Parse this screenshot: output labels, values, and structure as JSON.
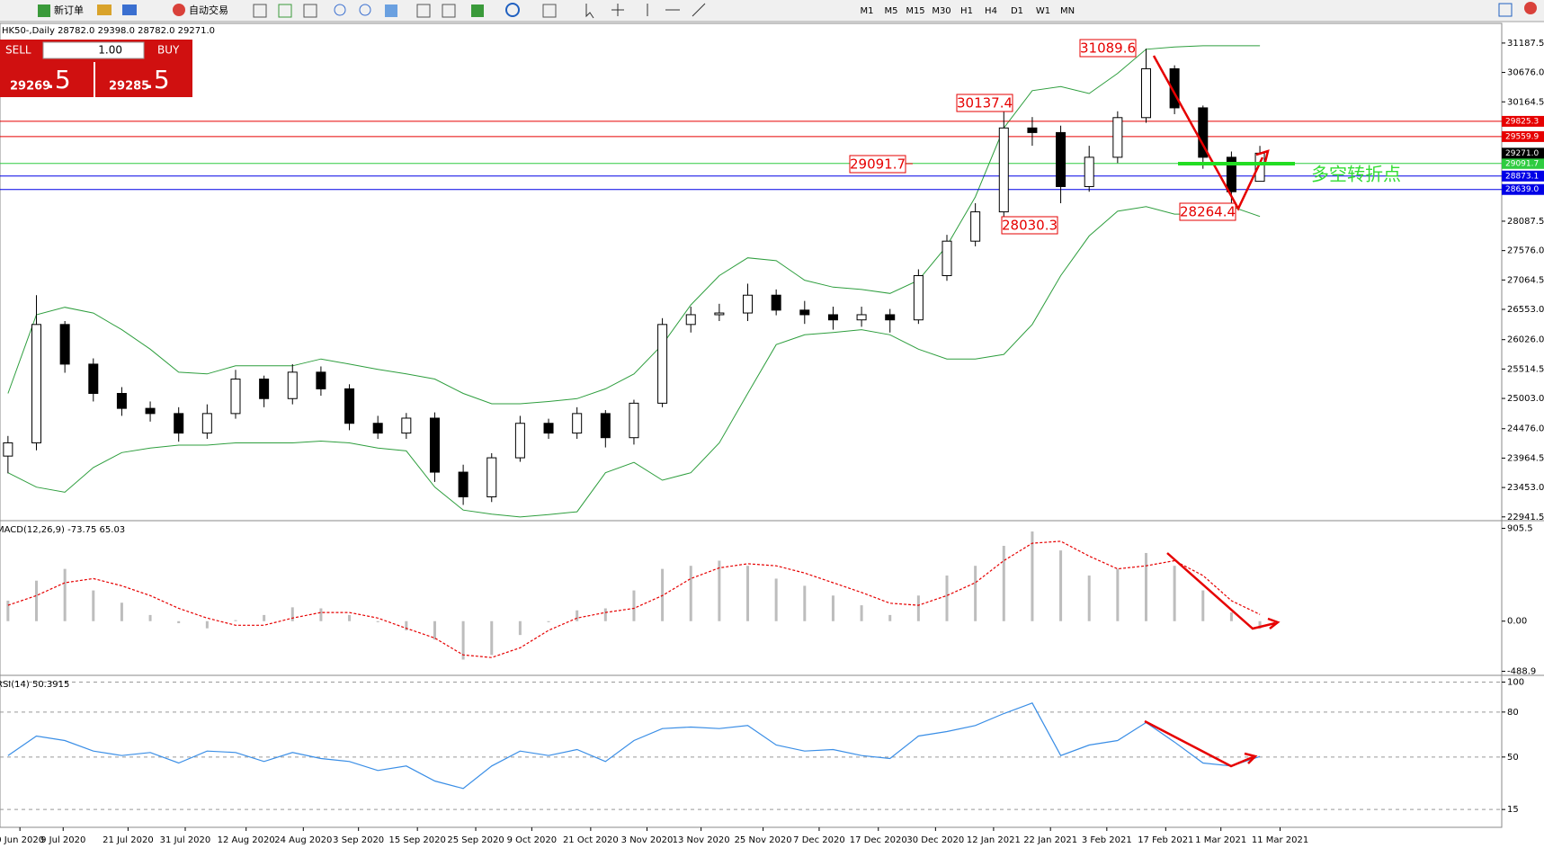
{
  "toolbar": {
    "new_order": "新订单",
    "auto_trading": "自动交易",
    "timeframes": [
      "M1",
      "M5",
      "M15",
      "M30",
      "H1",
      "H4",
      "D1",
      "W1",
      "MN"
    ]
  },
  "trade_panel": {
    "sell": "SELL",
    "buy": "BUY",
    "lots": "1.00",
    "bid_main": "29269",
    "bid_tail": ".5",
    "ask_main": "29285",
    "ask_tail": ".5"
  },
  "chart_data": [
    {
      "type": "candlestick",
      "title": "HK50-,Daily 28782.0 29398.0 28782.0 29271.0",
      "xlim": [
        -0.28,
        52.5
      ],
      "ylim": [
        22907,
        31530
      ],
      "yticks": [
        31187.5,
        {
          "value": 30676,
          "label": "30676.0"
        },
        30164.5,
        28087.5,
        {
          "value": 27576,
          "label": "27576.0"
        },
        27064.5,
        {
          "value": 26553,
          "label": "26553.0"
        },
        {
          "value": 26026,
          "label": "26026.0"
        },
        25514.5,
        {
          "value": 25003,
          "label": "25003.0"
        },
        {
          "value": 24476,
          "label": "24476.0"
        },
        23964.5,
        {
          "value": 23453,
          "label": "23453.0"
        },
        22941.5
      ],
      "open": [
        24000,
        24230,
        26290,
        25600,
        25090,
        24830,
        24740,
        24400,
        24740,
        25340,
        25000,
        25460,
        25170,
        24570,
        24400,
        24660,
        23720,
        23290,
        23970,
        24570,
        24400,
        24740,
        24320,
        24920,
        26290,
        26460,
        26490,
        26800,
        26540,
        26460,
        26370,
        26460,
        26370,
        27140,
        27740,
        28250,
        29710,
        29630,
        28690,
        29200,
        29890,
        30740,
        30060,
        29200,
        28782
      ],
      "high": [
        24350,
        26800,
        26350,
        25700,
        25200,
        24950,
        24850,
        24900,
        25500,
        25400,
        25600,
        25560,
        25250,
        24700,
        24750,
        24760,
        23850,
        24050,
        24700,
        24650,
        24850,
        24800,
        24980,
        26400,
        26600,
        26650,
        27000,
        26900,
        26700,
        26600,
        26600,
        26560,
        27250,
        27850,
        28400,
        30137.4,
        29900,
        29750,
        29400,
        30000,
        31089.6,
        30800,
        30100,
        29300,
        29398
      ],
      "low": [
        23700,
        24100,
        25450,
        24950,
        24700,
        24600,
        24250,
        24300,
        24650,
        24850,
        24900,
        25050,
        24450,
        24300,
        24300,
        23550,
        23150,
        23200,
        23900,
        24300,
        24300,
        24150,
        24200,
        24850,
        26150,
        26350,
        26350,
        26450,
        26300,
        26200,
        26250,
        26150,
        26300,
        27050,
        27650,
        28030.3,
        29400,
        28400,
        28600,
        29100,
        29800,
        29950,
        29000,
        28264.4,
        28782
      ],
      "close": [
        24230,
        26290,
        25600,
        25090,
        24830,
        24740,
        24400,
        24740,
        25340,
        25000,
        25460,
        25170,
        24570,
        24400,
        24660,
        23720,
        23290,
        23970,
        24570,
        24400,
        24740,
        24320,
        24920,
        26290,
        26460,
        26490,
        26800,
        26540,
        26460,
        26370,
        26460,
        26370,
        27140,
        27740,
        28250,
        29710,
        29630,
        28690,
        29200,
        29890,
        30740,
        30060,
        29200,
        28600,
        29271
      ],
      "bollinger": {
        "color": "#2e9e3e",
        "upper": [
          25090,
          26460,
          26590,
          26490,
          26200,
          25860,
          25460,
          25430,
          25570,
          25570,
          25570,
          25690,
          25600,
          25510,
          25430,
          25340,
          25090,
          24910,
          24910,
          24950,
          25000,
          25170,
          25430,
          25940,
          26630,
          27140,
          27450,
          27400,
          27060,
          26940,
          26900,
          26830,
          27060,
          27660,
          28510,
          29710,
          30360,
          30430,
          30310,
          30660,
          31080,
          31120,
          31140,
          31140,
          31140
        ],
        "lower": [
          23710,
          23460,
          23370,
          23800,
          24060,
          24140,
          24190,
          24190,
          24230,
          24230,
          24230,
          24260,
          24230,
          24140,
          24090,
          23460,
          23060,
          22990,
          22940,
          22980,
          23030,
          23710,
          23890,
          23580,
          23710,
          24230,
          25090,
          25940,
          26110,
          26150,
          26200,
          26110,
          25860,
          25690,
          25690,
          25770,
          26290,
          27140,
          27830,
          28260,
          28340,
          28210,
          28210,
          28340,
          28170
        ]
      },
      "levels": [
        {
          "value": 29825.3,
          "color": "#e60000"
        },
        {
          "value": 29559.9,
          "color": "#e60000"
        },
        {
          "value": 29091.7,
          "color": "#2ecc40"
        },
        {
          "value": 28873.1,
          "color": "#0000e6"
        },
        {
          "value": 28639,
          "label": "28639.0",
          "color": "#0000e6"
        }
      ],
      "last": {
        "value": 29271,
        "label": "29271.0"
      },
      "annotations": [
        31089.6,
        30137.4,
        29091.7,
        28030.3,
        28264.4
      ],
      "note": "多空转折点"
    },
    {
      "type": "macd",
      "title": "MACD(12,26,9) -73.75 65.03",
      "xlim": [
        -0.28,
        52.5
      ],
      "ylim": [
        -520,
        963
      ],
      "yticks": [
        905.5,
        {
          "value": 0,
          "label": "0.00"
        },
        -488.9
      ],
      "histogram": [
        200,
        395,
        510,
        300,
        180,
        60,
        -20,
        -70,
        10,
        60,
        135,
        125,
        60,
        -10,
        -90,
        -180,
        -375,
        -330,
        -135,
        -10,
        105,
        125,
        300,
        510,
        540,
        590,
        540,
        415,
        345,
        250,
        155,
        60,
        250,
        445,
        540,
        735,
        875,
        690,
        445,
        510,
        665,
        540,
        300,
        85,
        -73.75
      ],
      "signal": [
        155,
        250,
        375,
        415,
        345,
        250,
        125,
        30,
        -40,
        -40,
        30,
        85,
        85,
        30,
        -70,
        -165,
        -330,
        -355,
        -260,
        -90,
        30,
        85,
        125,
        250,
        415,
        520,
        560,
        540,
        470,
        375,
        280,
        175,
        155,
        250,
        375,
        590,
        760,
        780,
        635,
        510,
        540,
        590,
        445,
        200,
        65.03
      ],
      "hist_color": "#bdbdbd",
      "signal_color": "#e60000"
    },
    {
      "type": "line",
      "title": "RSI(14) 50.3915",
      "xlim": [
        -0.28,
        52.5
      ],
      "ylim": [
        3.1,
        103.3
      ],
      "yticks": [
        100,
        80,
        50,
        15
      ],
      "grid": true,
      "values": [
        51,
        64,
        61,
        54,
        51,
        53,
        46,
        54,
        53,
        47,
        53,
        49,
        47,
        41,
        44,
        34,
        29,
        44,
        54,
        51,
        55,
        47,
        61,
        69,
        70,
        69,
        71,
        58,
        54,
        55,
        51,
        49,
        64,
        67,
        71,
        79,
        86,
        51,
        58,
        61,
        73,
        60,
        46,
        44,
        50.3915
      ],
      "color": "#3a8ee6",
      "xticks": [
        {
          "value": 0.42,
          "label": "0 Jun 2020"
        },
        {
          "value": 1.94,
          "label": "9 Jul 2020"
        },
        {
          "value": 4.22,
          "label": "21 Jul 2020"
        },
        {
          "value": 6.23,
          "label": "31 Jul 2020"
        },
        {
          "value": 8.37,
          "label": "12 Aug 2020"
        },
        {
          "value": 10.38,
          "label": "24 Aug 2020"
        },
        {
          "value": 12.32,
          "label": "3 Sep 2020"
        },
        {
          "value": 14.39,
          "label": "15 Sep 2020"
        },
        {
          "value": 16.44,
          "label": "25 Sep 2020"
        },
        {
          "value": 18.41,
          "label": "9 Oct 2020"
        },
        {
          "value": 20.48,
          "label": "21 Oct 2020"
        },
        {
          "value": 22.46,
          "label": "3 Nov 2020"
        },
        {
          "value": 24.36,
          "label": "13 Nov 2020"
        },
        {
          "value": 26.54,
          "label": "25 Nov 2020"
        },
        {
          "value": 28.51,
          "label": "7 Dec 2020"
        },
        {
          "value": 30.59,
          "label": "17 Dec 2020"
        },
        {
          "value": 32.6,
          "label": "30 Dec 2020"
        },
        {
          "value": 34.64,
          "label": "12 Jan 2021"
        },
        {
          "value": 36.64,
          "label": "22 Jan 2021"
        },
        {
          "value": 38.62,
          "label": "3 Feb 2021"
        },
        {
          "value": 40.69,
          "label": "17 Feb 2021"
        },
        {
          "value": 42.63,
          "label": "1 Mar 2021"
        },
        {
          "value": 44.71,
          "label": "11 Mar 2021"
        }
      ]
    }
  ]
}
